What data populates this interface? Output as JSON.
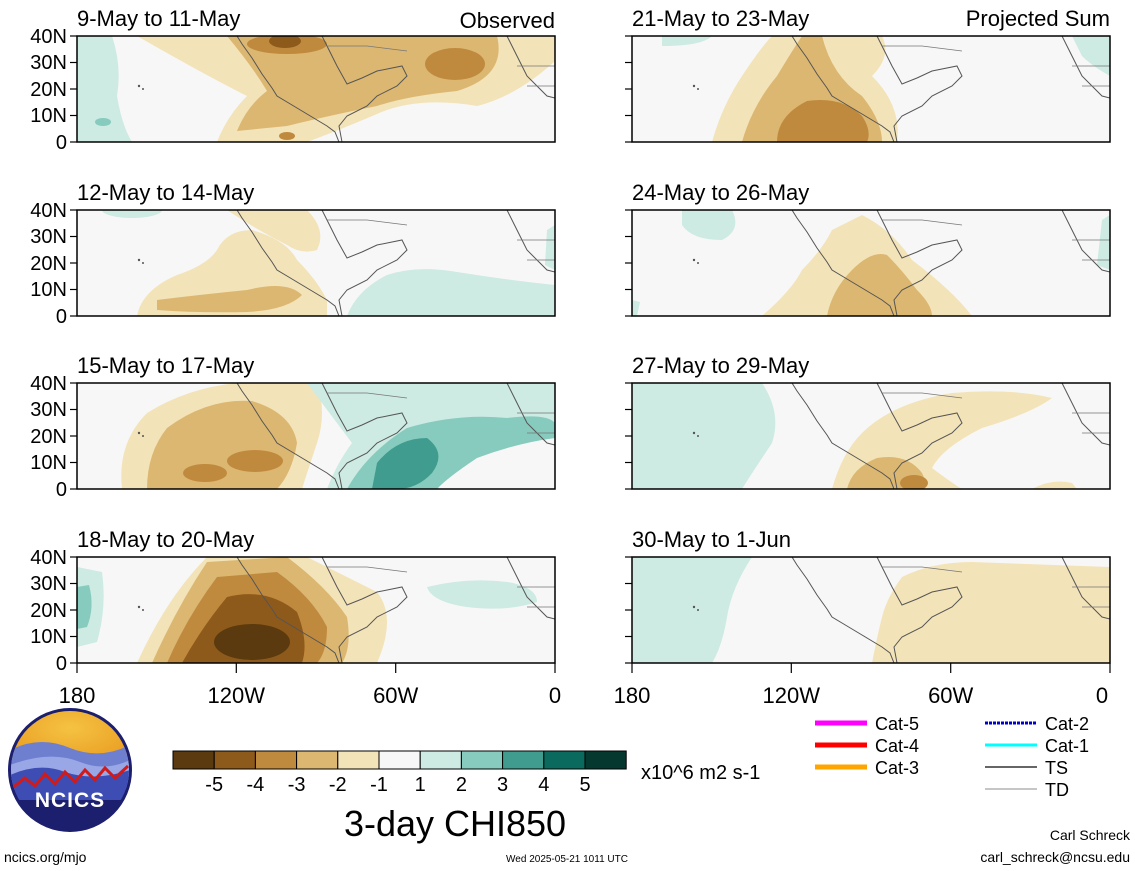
{
  "panels": [
    {
      "title": "9-May to 11-May",
      "corner": "Observed"
    },
    {
      "title": "12-May to 14-May",
      "corner": ""
    },
    {
      "title": "15-May to 17-May",
      "corner": ""
    },
    {
      "title": "18-May to 20-May",
      "corner": ""
    },
    {
      "title": "21-May to 23-May",
      "corner": "Projected Sum"
    },
    {
      "title": "24-May to 26-May",
      "corner": ""
    },
    {
      "title": "27-May to 29-May",
      "corner": ""
    },
    {
      "title": "30-May to 1-Jun",
      "corner": ""
    }
  ],
  "lat_labels": [
    "40N",
    "30N",
    "20N",
    "10N",
    "0"
  ],
  "lon_labels": [
    "180",
    "120W",
    "60W",
    "0"
  ],
  "colorbar": {
    "colors": [
      "#5a3a0e",
      "#8e5a1b",
      "#c08a3e",
      "#dcb771",
      "#f3e3b8",
      "#f7f7f7",
      "#cdeae3",
      "#86cbbd",
      "#3f9c8f",
      "#0b6a5e",
      "#05382f"
    ],
    "labels": [
      "-5",
      "-4",
      "-3",
      "-2",
      "-1",
      "1",
      "2",
      "3",
      "4",
      "5"
    ],
    "units": "x10^6 m2 s-1",
    "title": "3-day CHI850"
  },
  "legend": [
    {
      "label": "Cat-5",
      "color": "#ff00ff"
    },
    {
      "label": "Cat-4",
      "color": "#ff0000"
    },
    {
      "label": "Cat-3",
      "color": "#ffa500"
    },
    {
      "label": "Cat-2",
      "color": "#0000cc"
    },
    {
      "label": "Cat-1",
      "color": "#00ffff"
    },
    {
      "label": "TS",
      "color": "#666666"
    },
    {
      "label": "TD",
      "color": "#b3b3b3"
    }
  ],
  "logo_text": "NCICS",
  "footer": {
    "site": "ncics.org/mjo",
    "timestamp": "Wed 2025-05-21 1011 UTC",
    "author": "Carl Schreck",
    "email": "carl_schreck@ncsu.edu"
  }
}
